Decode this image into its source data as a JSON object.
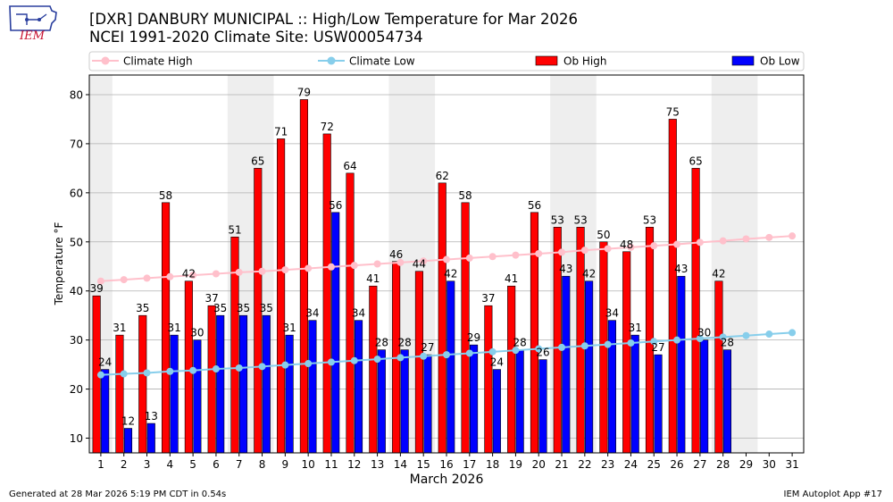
{
  "header": {
    "title_line1": "[DXR] DANBURY MUNICIPAL :: High/Low Temperature for Mar 2026",
    "title_line2": "NCEI 1991-2020 Climate Site: USW00054734",
    "logo_text": "IEM"
  },
  "footer": {
    "generated": "Generated at 28 Mar 2026 5:19 PM CDT in 0.54s",
    "app": "IEM Autoplot App #17"
  },
  "colors": {
    "ob_high": "#ff0000",
    "ob_low": "#0000ff",
    "climate_high": "#ffc0cb",
    "climate_low": "#87ceeb",
    "weekend_band": "#eeeeee",
    "grid": "#b0b0b0"
  },
  "chart_data": {
    "type": "bar",
    "title": "[DXR] DANBURY MUNICIPAL :: High/Low Temperature for Mar 2026",
    "xlabel": "March 2026",
    "ylabel": "Temperature °F",
    "ylim": [
      7,
      84
    ],
    "xlim": [
      0.5,
      31.5
    ],
    "yticks": [
      10,
      20,
      30,
      40,
      50,
      60,
      70,
      80
    ],
    "grid": "y",
    "legend_position": "top",
    "legend": [
      "Climate High",
      "Climate Low",
      "Ob High",
      "Ob Low"
    ],
    "days": [
      1,
      2,
      3,
      4,
      5,
      6,
      7,
      8,
      9,
      10,
      11,
      12,
      13,
      14,
      15,
      16,
      17,
      18,
      19,
      20,
      21,
      22,
      23,
      24,
      25,
      26,
      27,
      28,
      29,
      30,
      31
    ],
    "weekend_bands": [
      [
        1,
        1
      ],
      [
        7,
        8
      ],
      [
        14,
        15
      ],
      [
        21,
        22
      ],
      [
        28,
        29
      ]
    ],
    "series": [
      {
        "name": "Ob High",
        "type": "bar",
        "values": [
          39,
          31,
          35,
          58,
          42,
          37,
          51,
          65,
          71,
          79,
          72,
          64,
          41,
          46,
          44,
          62,
          58,
          37,
          41,
          56,
          53,
          53,
          50,
          48,
          53,
          75,
          65,
          42
        ]
      },
      {
        "name": "Ob Low",
        "type": "bar",
        "values": [
          24,
          12,
          13,
          31,
          30,
          35,
          35,
          35,
          31,
          34,
          56,
          34,
          28,
          28,
          27,
          42,
          29,
          24,
          28,
          26,
          43,
          42,
          34,
          31,
          27,
          43,
          30,
          28
        ]
      },
      {
        "name": "Climate High",
        "type": "line",
        "values": [
          42.0,
          42.3,
          42.6,
          42.9,
          43.2,
          43.5,
          43.8,
          44.0,
          44.3,
          44.6,
          44.9,
          45.2,
          45.5,
          45.8,
          46.1,
          46.4,
          46.7,
          47.0,
          47.3,
          47.6,
          47.9,
          48.3,
          48.6,
          48.9,
          49.2,
          49.5,
          49.9,
          50.2,
          50.6,
          50.9,
          51.2
        ]
      },
      {
        "name": "Climate Low",
        "type": "line",
        "values": [
          22.9,
          23.1,
          23.3,
          23.6,
          23.8,
          24.1,
          24.3,
          24.6,
          24.9,
          25.2,
          25.5,
          25.8,
          26.1,
          26.4,
          26.7,
          27.0,
          27.3,
          27.6,
          27.9,
          28.2,
          28.5,
          28.8,
          29.1,
          29.4,
          29.7,
          30.0,
          30.3,
          30.6,
          30.9,
          31.2,
          31.5
        ]
      }
    ]
  }
}
